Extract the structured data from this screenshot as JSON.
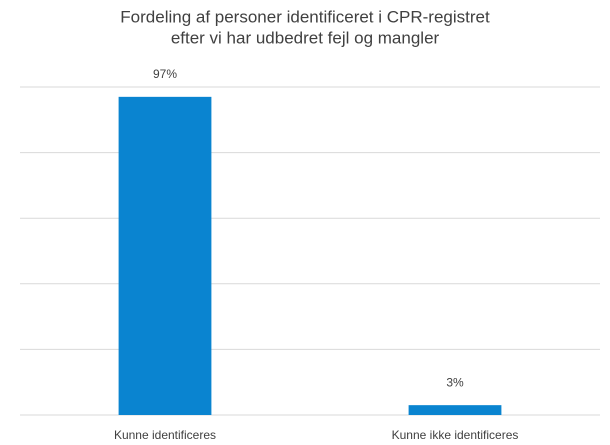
{
  "chart_data": {
    "type": "bar",
    "title": [
      "Fordeling af personer identificeret i CPR-registret",
      "efter vi har udbedret fejl og mangler"
    ],
    "categories": [
      "Kunne identificeres",
      "Kunne ikke identificeres"
    ],
    "values": [
      97,
      3
    ],
    "value_labels": [
      "97%",
      "3%"
    ],
    "color": "#0a84d0",
    "ylim": [
      0,
      100
    ],
    "yticks": [
      0,
      20,
      40,
      60,
      80,
      100
    ],
    "grid": true
  }
}
